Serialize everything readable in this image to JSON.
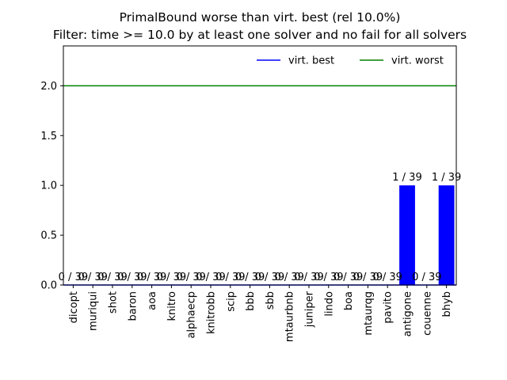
{
  "chart_data": {
    "type": "bar",
    "title": "PrimalBound worse than virt. best (rel 10.0%)",
    "subtitle": "Filter: time >= 10.0 by at least one solver and no fail for all solvers",
    "xlabel": "",
    "ylabel": "",
    "categories": [
      "dicopt",
      "muriqui",
      "shot",
      "baron",
      "aoa",
      "knitro",
      "alphaecp",
      "knitrobb",
      "scip",
      "bbb",
      "sbb",
      "mtaurbnb",
      "juniper",
      "lindo",
      "boa",
      "mtaurqg",
      "pavito",
      "antigone",
      "couenne",
      "bhyb"
    ],
    "values": [
      0,
      0,
      0,
      0,
      0,
      0,
      0,
      0,
      0,
      0,
      0,
      0,
      0,
      0,
      0,
      0,
      0,
      1,
      0,
      1
    ],
    "bar_labels": [
      "0 / 39",
      "0 / 39",
      "0 / 39",
      "0 / 39",
      "0 / 39",
      "0 / 39",
      "0 / 39",
      "0 / 39",
      "0 / 39",
      "0 / 39",
      "0 / 39",
      "0 / 39",
      "0 / 39",
      "0 / 39",
      "0 / 39",
      "0 / 39",
      "0 / 39",
      "1 / 39",
      "0 / 39",
      "1 / 39"
    ],
    "bar_color": "#0000ff",
    "ylim": [
      0,
      2.4
    ],
    "yticks": [
      "0.0",
      "0.5",
      "1.0",
      "1.5",
      "2.0"
    ],
    "ytick_values": [
      0,
      0.5,
      1.0,
      1.5,
      2.0
    ],
    "reference_lines": [
      {
        "name": "virt. best",
        "value": 0,
        "color": "#0000ff"
      },
      {
        "name": "virt. worst",
        "value": 2,
        "color": "#008000"
      }
    ],
    "legend_position": "top-right",
    "grid": false
  }
}
